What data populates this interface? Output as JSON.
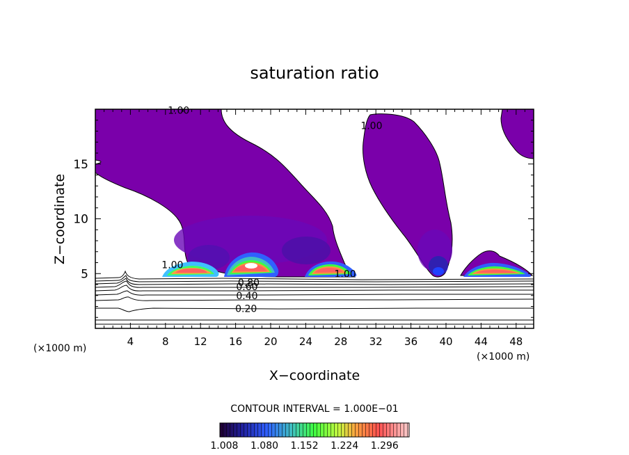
{
  "chart_data": {
    "type": "contour",
    "title": "saturation ratio",
    "xlabel": "X−coordinate",
    "ylabel": "Z−coordinate",
    "x_units_left": "(×1000 m)",
    "x_units_right": "(×1000 m)",
    "xlim": [
      0,
      50
    ],
    "ylim": [
      0,
      20
    ],
    "x_ticks": [
      4,
      8,
      12,
      16,
      20,
      24,
      28,
      32,
      36,
      40,
      44,
      48
    ],
    "y_ticks": [
      5,
      10,
      15
    ],
    "contour_interval_label": "CONTOUR INTERVAL = 1.000E−01",
    "contour_labels": [
      {
        "text": "1.00",
        "x": 9.5,
        "y": 19.9
      },
      {
        "text": "1.00",
        "x": 31.5,
        "y": 18.5
      },
      {
        "text": "1.00",
        "x": 8.8,
        "y": 5.8
      },
      {
        "text": "1.00",
        "x": 28.5,
        "y": 5.0
      },
      {
        "text": "0.80",
        "x": 17.5,
        "y": 4.2
      },
      {
        "text": "0.60",
        "x": 17.3,
        "y": 3.8
      },
      {
        "text": "0.40",
        "x": 17.3,
        "y": 3.0
      },
      {
        "text": "0.20",
        "x": 17.2,
        "y": 1.8
      }
    ],
    "colorbar": {
      "min": 1.0,
      "max": 1.34,
      "tick_labels": [
        "1.008",
        "1.080",
        "1.152",
        "1.224",
        "1.296"
      ]
    },
    "colors": {
      "fill_base": "#7a00aa",
      "deep_blue": "#2a10a8",
      "high": "#ff8080"
    }
  }
}
